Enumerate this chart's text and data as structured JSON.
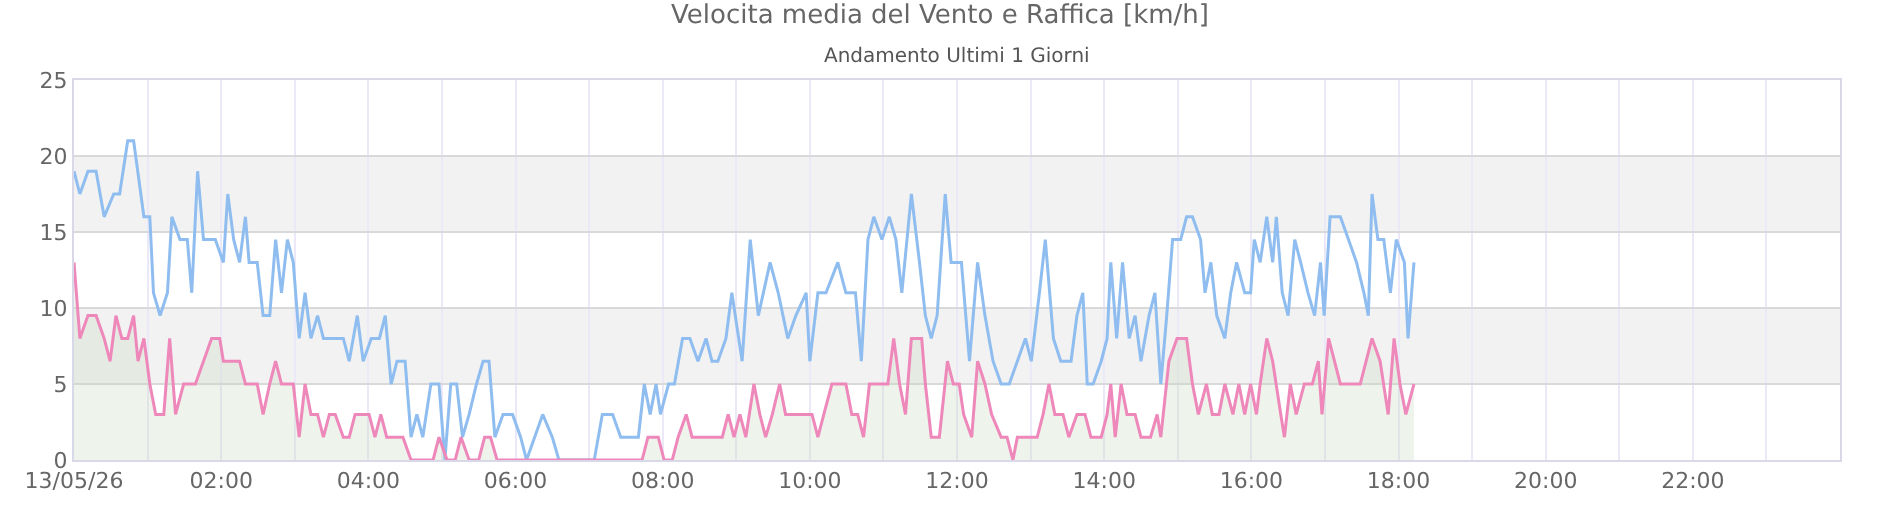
{
  "chart_data": {
    "type": "line",
    "title": "Velocita media del Vento e Raffica [km/h]",
    "subtitle": "Andamento Ultimi 1 Giorni",
    "xlim": [
      0,
      24
    ],
    "xticks": [
      {
        "value": 0,
        "label": "13/05/26"
      },
      {
        "value": 1,
        "label": null
      },
      {
        "value": 2,
        "label": "02:00"
      },
      {
        "value": 3,
        "label": null
      },
      {
        "value": 4,
        "label": "04:00"
      },
      {
        "value": 5,
        "label": null
      },
      {
        "value": 6,
        "label": "06:00"
      },
      {
        "value": 7,
        "label": null
      },
      {
        "value": 8,
        "label": "08:00"
      },
      {
        "value": 9,
        "label": null
      },
      {
        "value": 10,
        "label": "10:00"
      },
      {
        "value": 11,
        "label": null
      },
      {
        "value": 12,
        "label": "12:00"
      },
      {
        "value": 13,
        "label": null
      },
      {
        "value": 14,
        "label": "14:00"
      },
      {
        "value": 15,
        "label": null
      },
      {
        "value": 16,
        "label": "16:00"
      },
      {
        "value": 17,
        "label": null
      },
      {
        "value": 18,
        "label": "18:00"
      },
      {
        "value": 19,
        "label": null
      },
      {
        "value": 20,
        "label": "20:00"
      },
      {
        "value": 21,
        "label": null
      },
      {
        "value": 22,
        "label": "22:00"
      },
      {
        "value": 23,
        "label": null
      },
      {
        "value": 24,
        "label": null
      }
    ],
    "ylim": [
      0,
      25
    ],
    "yticks": [
      0,
      5,
      10,
      15,
      20,
      25
    ],
    "grid": true,
    "bands": [
      {
        "axis": "y",
        "from": 5,
        "to": 10,
        "color": "#f2f2f2"
      },
      {
        "axis": "y",
        "from": 15,
        "to": 20,
        "color": "#f2f2f2"
      }
    ],
    "series": [
      {
        "color": "#8fbdf0",
        "x": [
          0,
          0.08,
          0.19,
          0.3,
          0.41,
          0.54,
          0.62,
          0.73,
          0.81,
          0.95,
          1.03,
          1.08,
          1.17,
          1.27,
          1.33,
          1.44,
          1.54,
          1.6,
          1.68,
          1.76,
          1.92,
          2.03,
          2.09,
          2.17,
          2.25,
          2.33,
          2.38,
          2.49,
          2.57,
          2.66,
          2.74,
          2.82,
          2.9,
          2.98,
          3.06,
          3.14,
          3.22,
          3.31,
          3.39,
          3.52,
          3.66,
          3.74,
          3.85,
          3.93,
          4.04,
          4.15,
          4.23,
          4.31,
          4.39,
          4.5,
          4.58,
          4.66,
          4.74,
          4.85,
          4.96,
          5.04,
          5.12,
          5.2,
          5.28,
          5.37,
          5.47,
          5.56,
          5.64,
          5.72,
          5.83,
          5.96,
          6.07,
          6.15,
          6.26,
          6.37,
          6.5,
          6.59,
          7.07,
          7.18,
          7.32,
          7.43,
          7.67,
          7.75,
          7.83,
          7.91,
          7.97,
          8.08,
          8.16,
          8.27,
          8.37,
          8.48,
          8.59,
          8.67,
          8.75,
          8.86,
          8.94,
          9.08,
          9.19,
          9.3,
          9.46,
          9.57,
          9.7,
          9.81,
          9.95,
          10.0,
          10.11,
          10.22,
          10.38,
          10.49,
          10.62,
          10.7,
          10.79,
          10.87,
          10.98,
          11.08,
          11.17,
          11.25,
          11.38,
          11.49,
          11.57,
          11.65,
          11.73,
          11.84,
          11.92,
          12.06,
          12.17,
          12.28,
          12.38,
          12.49,
          12.6,
          12.71,
          12.82,
          12.93,
          13.01,
          13.12,
          13.2,
          13.31,
          13.41,
          13.55,
          13.63,
          13.71,
          13.77,
          13.85,
          13.96,
          14.04,
          14.09,
          14.17,
          14.25,
          14.34,
          14.42,
          14.5,
          14.61,
          14.69,
          14.77,
          14.85,
          14.93,
          15.04,
          15.12,
          15.2,
          15.31,
          15.37,
          15.45,
          15.53,
          15.64,
          15.72,
          15.8,
          15.91,
          15.99,
          16.04,
          16.12,
          16.21,
          16.29,
          16.34,
          16.42,
          16.5,
          16.59,
          16.67,
          16.77,
          16.86,
          16.94,
          16.99,
          17.07,
          17.21,
          17.32,
          17.43,
          17.53,
          17.59,
          17.64,
          17.72,
          17.8,
          17.89,
          17.97,
          18.08,
          18.13,
          18.21
        ],
        "values": [
          19,
          17.5,
          19,
          19,
          16,
          17.5,
          17.5,
          21,
          21,
          16,
          16,
          11,
          9.5,
          11,
          16,
          14.5,
          14.5,
          11,
          19,
          14.5,
          14.5,
          13,
          17.5,
          14.5,
          13,
          16,
          13,
          13,
          9.5,
          9.5,
          14.5,
          11,
          14.5,
          13,
          8,
          11,
          8,
          9.5,
          8,
          8,
          8,
          6.5,
          9.5,
          6.5,
          8,
          8,
          9.5,
          5,
          6.5,
          6.5,
          1.5,
          3,
          1.5,
          5,
          5,
          0,
          5,
          5,
          1.5,
          3,
          5,
          6.5,
          6.5,
          1.5,
          3,
          3,
          1.5,
          0,
          1.5,
          3,
          1.5,
          0,
          0,
          3,
          3,
          1.5,
          1.5,
          5,
          3,
          5,
          3,
          5,
          5,
          8,
          8,
          6.5,
          8,
          6.5,
          6.5,
          8,
          11,
          6.5,
          14.5,
          9.5,
          13,
          11,
          8,
          9.5,
          11,
          6.5,
          11,
          11,
          13,
          11,
          11,
          6.5,
          14.5,
          16,
          14.5,
          16,
          14.5,
          11,
          17.5,
          13,
          9.5,
          8,
          9.5,
          17.5,
          13,
          13,
          6.5,
          13,
          9.5,
          6.5,
          5,
          5,
          6.5,
          8,
          6.5,
          11,
          14.5,
          8,
          6.5,
          6.5,
          9.5,
          11,
          5,
          5,
          6.5,
          8,
          13,
          8,
          13,
          8,
          9.5,
          6.5,
          9.5,
          11,
          5,
          9.5,
          14.5,
          14.5,
          16,
          16,
          14.5,
          11,
          13,
          9.5,
          8,
          11,
          13,
          11,
          11,
          14.5,
          13,
          16,
          13,
          16,
          11,
          9.5,
          14.5,
          13,
          11,
          9.5,
          13,
          9.5,
          16,
          16,
          14.5,
          13,
          11,
          9.5,
          17.5,
          14.5,
          14.5,
          11,
          14.5,
          13,
          8,
          13
        ]
      },
      {
        "type": "area",
        "color": "#ee88bb",
        "x": [
          0,
          0.08,
          0.19,
          0.3,
          0.41,
          0.49,
          0.57,
          0.65,
          0.73,
          0.81,
          0.87,
          0.95,
          1.03,
          1.11,
          1.22,
          1.3,
          1.38,
          1.49,
          1.65,
          1.76,
          1.87,
          1.98,
          2.03,
          2.25,
          2.33,
          2.49,
          2.57,
          2.66,
          2.74,
          2.82,
          2.98,
          3.06,
          3.14,
          3.22,
          3.31,
          3.39,
          3.47,
          3.55,
          3.66,
          3.74,
          3.82,
          3.93,
          4.01,
          4.09,
          4.17,
          4.25,
          4.39,
          4.47,
          4.58,
          4.88,
          4.96,
          5.07,
          5.18,
          5.26,
          5.37,
          5.5,
          5.58,
          5.66,
          5.75,
          7.72,
          7.8,
          7.94,
          8.02,
          8.13,
          8.21,
          8.32,
          8.4,
          8.67,
          8.81,
          8.89,
          8.97,
          9.05,
          9.13,
          9.24,
          9.32,
          9.4,
          9.49,
          9.59,
          9.67,
          9.89,
          10.03,
          10.11,
          10.19,
          10.3,
          10.41,
          10.49,
          10.57,
          10.65,
          10.73,
          10.81,
          11.06,
          11.14,
          11.22,
          11.3,
          11.38,
          11.52,
          11.57,
          11.65,
          11.76,
          11.87,
          11.95,
          12.03,
          12.09,
          12.2,
          12.28,
          12.38,
          12.47,
          12.6,
          12.68,
          12.76,
          12.82,
          12.98,
          13.09,
          13.17,
          13.25,
          13.33,
          13.44,
          13.52,
          13.63,
          13.74,
          13.82,
          13.96,
          14.04,
          14.09,
          14.15,
          14.23,
          14.31,
          14.42,
          14.5,
          14.63,
          14.72,
          14.77,
          14.88,
          14.99,
          15.12,
          15.2,
          15.28,
          15.39,
          15.47,
          15.56,
          15.64,
          15.75,
          15.83,
          15.91,
          15.99,
          16.07,
          16.12,
          16.21,
          16.29,
          16.4,
          16.45,
          16.53,
          16.61,
          16.72,
          16.83,
          16.91,
          16.96,
          17.05,
          17.13,
          17.21,
          17.34,
          17.48,
          17.56,
          17.64,
          17.75,
          17.86,
          17.94,
          18.02,
          18.1,
          18.21
        ],
        "values": [
          13,
          8,
          9.5,
          9.5,
          8,
          6.5,
          9.5,
          8,
          8,
          9.5,
          6.5,
          8,
          5,
          3,
          3,
          8,
          3,
          5,
          5,
          6.5,
          8,
          8,
          6.5,
          6.5,
          5,
          5,
          3,
          5,
          6.5,
          5,
          5,
          1.5,
          5,
          3,
          3,
          1.5,
          3,
          3,
          1.5,
          1.5,
          3,
          3,
          3,
          1.5,
          3,
          1.5,
          1.5,
          1.5,
          0,
          0,
          1.5,
          0,
          0,
          1.5,
          0,
          0,
          1.5,
          1.5,
          0,
          0,
          1.5,
          1.5,
          0,
          0,
          1.5,
          3,
          1.5,
          1.5,
          1.5,
          3,
          1.5,
          3,
          1.5,
          5,
          3,
          1.5,
          3,
          5,
          3,
          3,
          3,
          1.5,
          3,
          5,
          5,
          5,
          3,
          3,
          1.5,
          5,
          5,
          8,
          5,
          3,
          8,
          8,
          5,
          1.5,
          1.5,
          6.5,
          5,
          5,
          3,
          1.5,
          6.5,
          5,
          3,
          1.5,
          1.5,
          0,
          1.5,
          1.5,
          1.5,
          3,
          5,
          3,
          3,
          1.5,
          3,
          3,
          1.5,
          1.5,
          3,
          5,
          1.5,
          5,
          3,
          3,
          1.5,
          1.5,
          3,
          1.5,
          6.5,
          8,
          8,
          5,
          3,
          5,
          3,
          3,
          5,
          3,
          5,
          3,
          5,
          3,
          5,
          8,
          6.5,
          3,
          1.5,
          5,
          3,
          5,
          5,
          6.5,
          3,
          8,
          6.5,
          5,
          5,
          5,
          6.5,
          8,
          6.5,
          3,
          8,
          5,
          3,
          5
        ]
      }
    ]
  }
}
